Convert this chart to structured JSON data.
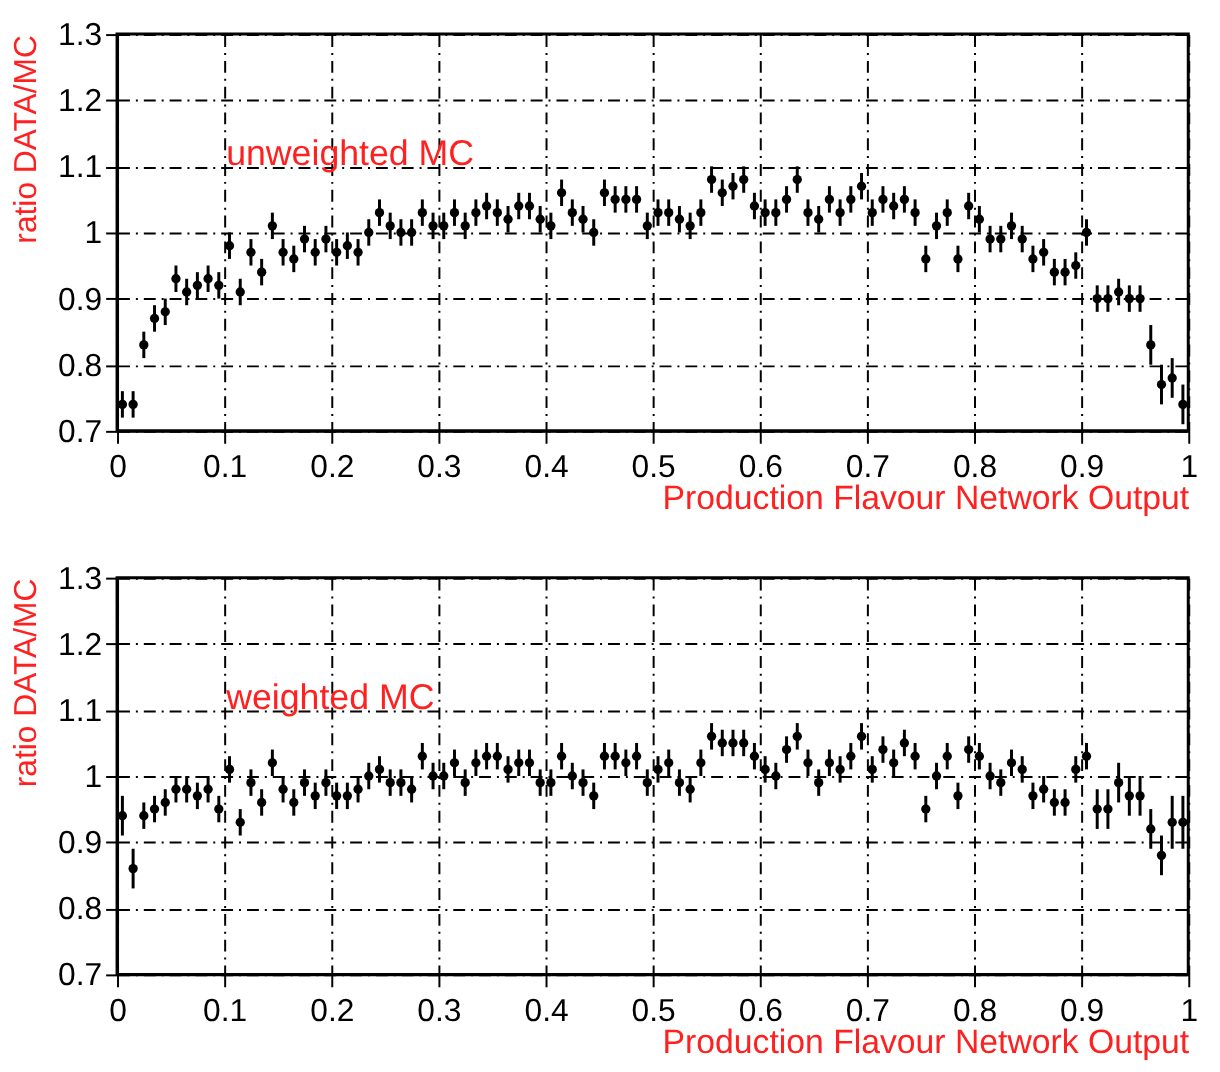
{
  "chart_data": [
    {
      "type": "scatter",
      "xlabel": "Production Flavour Network Output",
      "ylabel": "ratio DATA/MC",
      "annotations": [
        "unweighted MC"
      ],
      "xlim": [
        0,
        1
      ],
      "xticks": [
        0,
        0.1,
        0.2,
        0.3,
        0.4,
        0.5,
        0.6,
        0.7,
        0.8,
        0.9,
        1
      ],
      "ylim": [
        0.7,
        1.3
      ],
      "yticks": [
        0.7,
        0.8,
        0.9,
        1,
        1.1,
        1.2,
        1.3
      ],
      "grid": true,
      "marker": "circle",
      "x": [
        0.005,
        0.015,
        0.025,
        0.035,
        0.045,
        0.055,
        0.065,
        0.075,
        0.085,
        0.095,
        0.105,
        0.115,
        0.125,
        0.135,
        0.145,
        0.155,
        0.165,
        0.175,
        0.185,
        0.195,
        0.205,
        0.215,
        0.225,
        0.235,
        0.245,
        0.255,
        0.265,
        0.275,
        0.285,
        0.295,
        0.305,
        0.315,
        0.325,
        0.335,
        0.345,
        0.355,
        0.365,
        0.375,
        0.385,
        0.395,
        0.405,
        0.415,
        0.425,
        0.435,
        0.445,
        0.455,
        0.465,
        0.475,
        0.485,
        0.495,
        0.505,
        0.515,
        0.525,
        0.535,
        0.545,
        0.555,
        0.565,
        0.575,
        0.585,
        0.595,
        0.605,
        0.615,
        0.625,
        0.635,
        0.645,
        0.655,
        0.665,
        0.675,
        0.685,
        0.695,
        0.705,
        0.715,
        0.725,
        0.735,
        0.745,
        0.755,
        0.765,
        0.775,
        0.785,
        0.795,
        0.805,
        0.815,
        0.825,
        0.835,
        0.845,
        0.855,
        0.865,
        0.875,
        0.885,
        0.895,
        0.905,
        0.915,
        0.925,
        0.935,
        0.945,
        0.955,
        0.965,
        0.975,
        0.985,
        0.995
      ],
      "series": [
        {
          "color": "#000000",
          "values": [
            0.74,
            0.74,
            0.83,
            0.87,
            0.88,
            0.93,
            0.91,
            0.92,
            0.93,
            0.92,
            0.98,
            0.91,
            0.97,
            0.94,
            1.01,
            0.97,
            0.96,
            0.99,
            0.97,
            0.99,
            0.97,
            0.98,
            0.97,
            1.0,
            1.03,
            1.01,
            1.0,
            1.0,
            1.03,
            1.01,
            1.01,
            1.03,
            1.01,
            1.03,
            1.04,
            1.03,
            1.02,
            1.04,
            1.04,
            1.02,
            1.01,
            1.06,
            1.03,
            1.02,
            1.0,
            1.06,
            1.05,
            1.05,
            1.05,
            1.01,
            1.03,
            1.03,
            1.02,
            1.01,
            1.03,
            1.08,
            1.06,
            1.07,
            1.08,
            1.04,
            1.03,
            1.03,
            1.05,
            1.08,
            1.03,
            1.02,
            1.05,
            1.03,
            1.05,
            1.07,
            1.03,
            1.05,
            1.04,
            1.05,
            1.03,
            0.96,
            1.01,
            1.03,
            0.96,
            1.04,
            1.02,
            0.99,
            0.99,
            1.01,
            0.99,
            0.96,
            0.97,
            0.94,
            0.94,
            0.95,
            1.0,
            0.9,
            0.9,
            0.91,
            0.9,
            0.9,
            0.83,
            0.77,
            0.78,
            0.74
          ],
          "errors": [
            0.02,
            0.02,
            0.02,
            0.02,
            0.02,
            0.02,
            0.02,
            0.02,
            0.02,
            0.02,
            0.02,
            0.02,
            0.02,
            0.02,
            0.02,
            0.02,
            0.02,
            0.02,
            0.02,
            0.02,
            0.02,
            0.02,
            0.02,
            0.02,
            0.02,
            0.02,
            0.02,
            0.02,
            0.02,
            0.02,
            0.02,
            0.02,
            0.02,
            0.02,
            0.02,
            0.02,
            0.02,
            0.02,
            0.02,
            0.02,
            0.02,
            0.02,
            0.02,
            0.02,
            0.02,
            0.02,
            0.02,
            0.02,
            0.02,
            0.02,
            0.02,
            0.02,
            0.02,
            0.02,
            0.02,
            0.02,
            0.02,
            0.02,
            0.02,
            0.02,
            0.02,
            0.02,
            0.02,
            0.02,
            0.02,
            0.02,
            0.02,
            0.02,
            0.02,
            0.02,
            0.02,
            0.02,
            0.02,
            0.02,
            0.02,
            0.02,
            0.02,
            0.02,
            0.02,
            0.02,
            0.02,
            0.02,
            0.02,
            0.02,
            0.02,
            0.02,
            0.02,
            0.02,
            0.02,
            0.02,
            0.02,
            0.02,
            0.02,
            0.02,
            0.02,
            0.02,
            0.03,
            0.03,
            0.03,
            0.03
          ]
        }
      ]
    },
    {
      "type": "scatter",
      "xlabel": "Production Flavour Network Output",
      "ylabel": "ratio DATA/MC",
      "annotations": [
        "weighted MC"
      ],
      "xlim": [
        0,
        1
      ],
      "xticks": [
        0,
        0.1,
        0.2,
        0.3,
        0.4,
        0.5,
        0.6,
        0.7,
        0.8,
        0.9,
        1
      ],
      "ylim": [
        0.7,
        1.3
      ],
      "yticks": [
        0.7,
        0.8,
        0.9,
        1,
        1.1,
        1.2,
        1.3
      ],
      "grid": true,
      "marker": "circle",
      "x": [
        0.005,
        0.015,
        0.025,
        0.035,
        0.045,
        0.055,
        0.065,
        0.075,
        0.085,
        0.095,
        0.105,
        0.115,
        0.125,
        0.135,
        0.145,
        0.155,
        0.165,
        0.175,
        0.185,
        0.195,
        0.205,
        0.215,
        0.225,
        0.235,
        0.245,
        0.255,
        0.265,
        0.275,
        0.285,
        0.295,
        0.305,
        0.315,
        0.325,
        0.335,
        0.345,
        0.355,
        0.365,
        0.375,
        0.385,
        0.395,
        0.405,
        0.415,
        0.425,
        0.435,
        0.445,
        0.455,
        0.465,
        0.475,
        0.485,
        0.495,
        0.505,
        0.515,
        0.525,
        0.535,
        0.545,
        0.555,
        0.565,
        0.575,
        0.585,
        0.595,
        0.605,
        0.615,
        0.625,
        0.635,
        0.645,
        0.655,
        0.665,
        0.675,
        0.685,
        0.695,
        0.705,
        0.715,
        0.725,
        0.735,
        0.745,
        0.755,
        0.765,
        0.775,
        0.785,
        0.795,
        0.805,
        0.815,
        0.825,
        0.835,
        0.845,
        0.855,
        0.865,
        0.875,
        0.885,
        0.895,
        0.905,
        0.915,
        0.925,
        0.935,
        0.945,
        0.955,
        0.965,
        0.975,
        0.985,
        0.995
      ],
      "series": [
        {
          "color": "#000000",
          "values": [
            0.94,
            0.86,
            0.94,
            0.95,
            0.96,
            0.98,
            0.98,
            0.97,
            0.98,
            0.95,
            1.01,
            0.93,
            0.99,
            0.96,
            1.02,
            0.98,
            0.96,
            0.99,
            0.97,
            0.99,
            0.97,
            0.97,
            0.98,
            1.0,
            1.01,
            0.99,
            0.99,
            0.98,
            1.03,
            1.0,
            1.0,
            1.02,
            0.99,
            1.02,
            1.03,
            1.03,
            1.01,
            1.02,
            1.02,
            0.99,
            0.99,
            1.03,
            1.0,
            0.99,
            0.97,
            1.03,
            1.03,
            1.02,
            1.03,
            0.99,
            1.01,
            1.02,
            0.99,
            0.98,
            1.02,
            1.06,
            1.05,
            1.05,
            1.05,
            1.03,
            1.01,
            1.0,
            1.04,
            1.06,
            1.02,
            0.99,
            1.02,
            1.01,
            1.03,
            1.06,
            1.01,
            1.04,
            1.02,
            1.05,
            1.03,
            0.95,
            1.0,
            1.03,
            0.97,
            1.04,
            1.03,
            1.0,
            0.99,
            1.02,
            1.01,
            0.97,
            0.98,
            0.96,
            0.96,
            1.01,
            1.03,
            0.95,
            0.95,
            0.99,
            0.97,
            0.97,
            0.92,
            0.88,
            0.93,
            0.93
          ],
          "errors": [
            0.03,
            0.03,
            0.02,
            0.02,
            0.02,
            0.02,
            0.02,
            0.02,
            0.02,
            0.02,
            0.02,
            0.02,
            0.02,
            0.02,
            0.02,
            0.02,
            0.02,
            0.02,
            0.02,
            0.02,
            0.02,
            0.02,
            0.02,
            0.02,
            0.02,
            0.02,
            0.02,
            0.02,
            0.02,
            0.02,
            0.02,
            0.02,
            0.02,
            0.02,
            0.02,
            0.02,
            0.02,
            0.02,
            0.02,
            0.02,
            0.02,
            0.02,
            0.02,
            0.02,
            0.02,
            0.02,
            0.02,
            0.02,
            0.02,
            0.02,
            0.02,
            0.02,
            0.02,
            0.02,
            0.02,
            0.02,
            0.02,
            0.02,
            0.02,
            0.02,
            0.02,
            0.02,
            0.02,
            0.02,
            0.02,
            0.02,
            0.02,
            0.02,
            0.02,
            0.02,
            0.02,
            0.02,
            0.02,
            0.02,
            0.02,
            0.02,
            0.02,
            0.02,
            0.02,
            0.02,
            0.02,
            0.02,
            0.02,
            0.02,
            0.02,
            0.02,
            0.02,
            0.02,
            0.02,
            0.02,
            0.02,
            0.03,
            0.03,
            0.03,
            0.03,
            0.03,
            0.03,
            0.03,
            0.04,
            0.04
          ]
        }
      ]
    }
  ]
}
